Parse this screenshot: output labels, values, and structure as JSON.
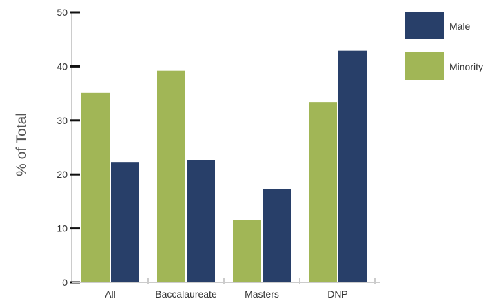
{
  "chart_data": {
    "type": "bar",
    "title": "",
    "xlabel": "",
    "ylabel": "% of Total",
    "ylim": [
      0,
      50
    ],
    "yticks": [
      0,
      10,
      20,
      30,
      40,
      50
    ],
    "grid": false,
    "legend_position": "top-right",
    "categories": [
      "All",
      "Baccalaureate",
      "Masters",
      "DNP"
    ],
    "series": [
      {
        "name": "Minority",
        "color": "#a1b656",
        "values": [
          35.1,
          39.2,
          11.6,
          33.4
        ]
      },
      {
        "name": "Male",
        "color": "#283f69",
        "values": [
          22.3,
          22.6,
          17.3,
          42.9
        ]
      }
    ]
  }
}
